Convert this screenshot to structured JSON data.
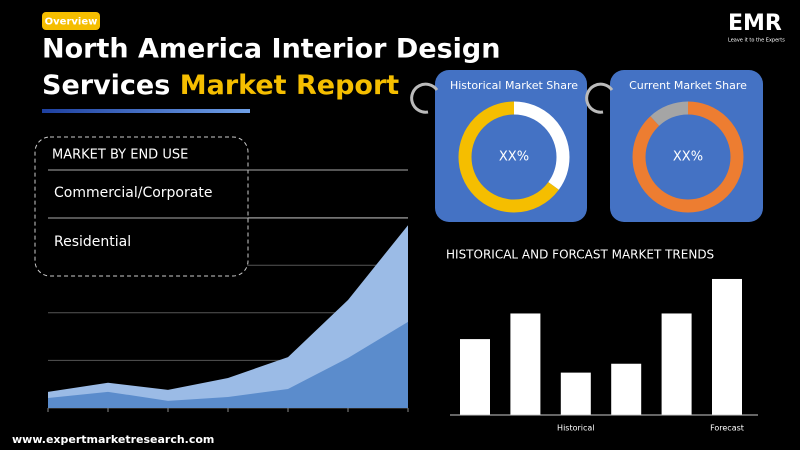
{
  "header": {
    "tag": "Overview",
    "title_line1": "North America Interior Design",
    "title_line2": "Services",
    "title_highlight": "Market Report"
  },
  "logo": {
    "name": "EMR",
    "tagline": "Leave it to the Experts"
  },
  "segment_box": {
    "title": "MARKET BY END USE",
    "items": [
      "Commercial/Corporate",
      "Residential"
    ]
  },
  "donuts": [
    {
      "title": "Historical Market Share",
      "center_label": "XX%",
      "segments": [
        {
          "color": "#ffffff",
          "value": 35
        },
        {
          "color": "#f5be00",
          "value": 65
        }
      ]
    },
    {
      "title": "Current Market Share",
      "center_label": "XX%",
      "segments": [
        {
          "color": "#ed7d31",
          "value": 88
        },
        {
          "color": "#a5a5a5",
          "value": 12
        }
      ]
    }
  ],
  "area_chart": {
    "type": "area",
    "ylim": [
      0,
      5
    ],
    "yticks": [
      0,
      1,
      2,
      3,
      4,
      5
    ],
    "series": [
      {
        "color": "#9bbbe6",
        "values": [
          0.34,
          0.53,
          0.38,
          0.63,
          1.07,
          2.27,
          3.84
        ]
      },
      {
        "color": "#5b8ccc",
        "values": [
          0.21,
          0.34,
          0.15,
          0.23,
          0.4,
          1.05,
          1.81
        ]
      }
    ]
  },
  "bar_chart": {
    "type": "bar",
    "title": "HISTORICAL AND FORCAST MARKET TRENDS",
    "color": "#ffffff",
    "ylim": [
      0,
      140
    ],
    "categories": [
      null,
      null,
      "Historical",
      null,
      null,
      "Forecast"
    ],
    "values": [
      77,
      103,
      43,
      52,
      103,
      138
    ]
  },
  "footer": {
    "url": "www.expertmarketresearch.com"
  }
}
